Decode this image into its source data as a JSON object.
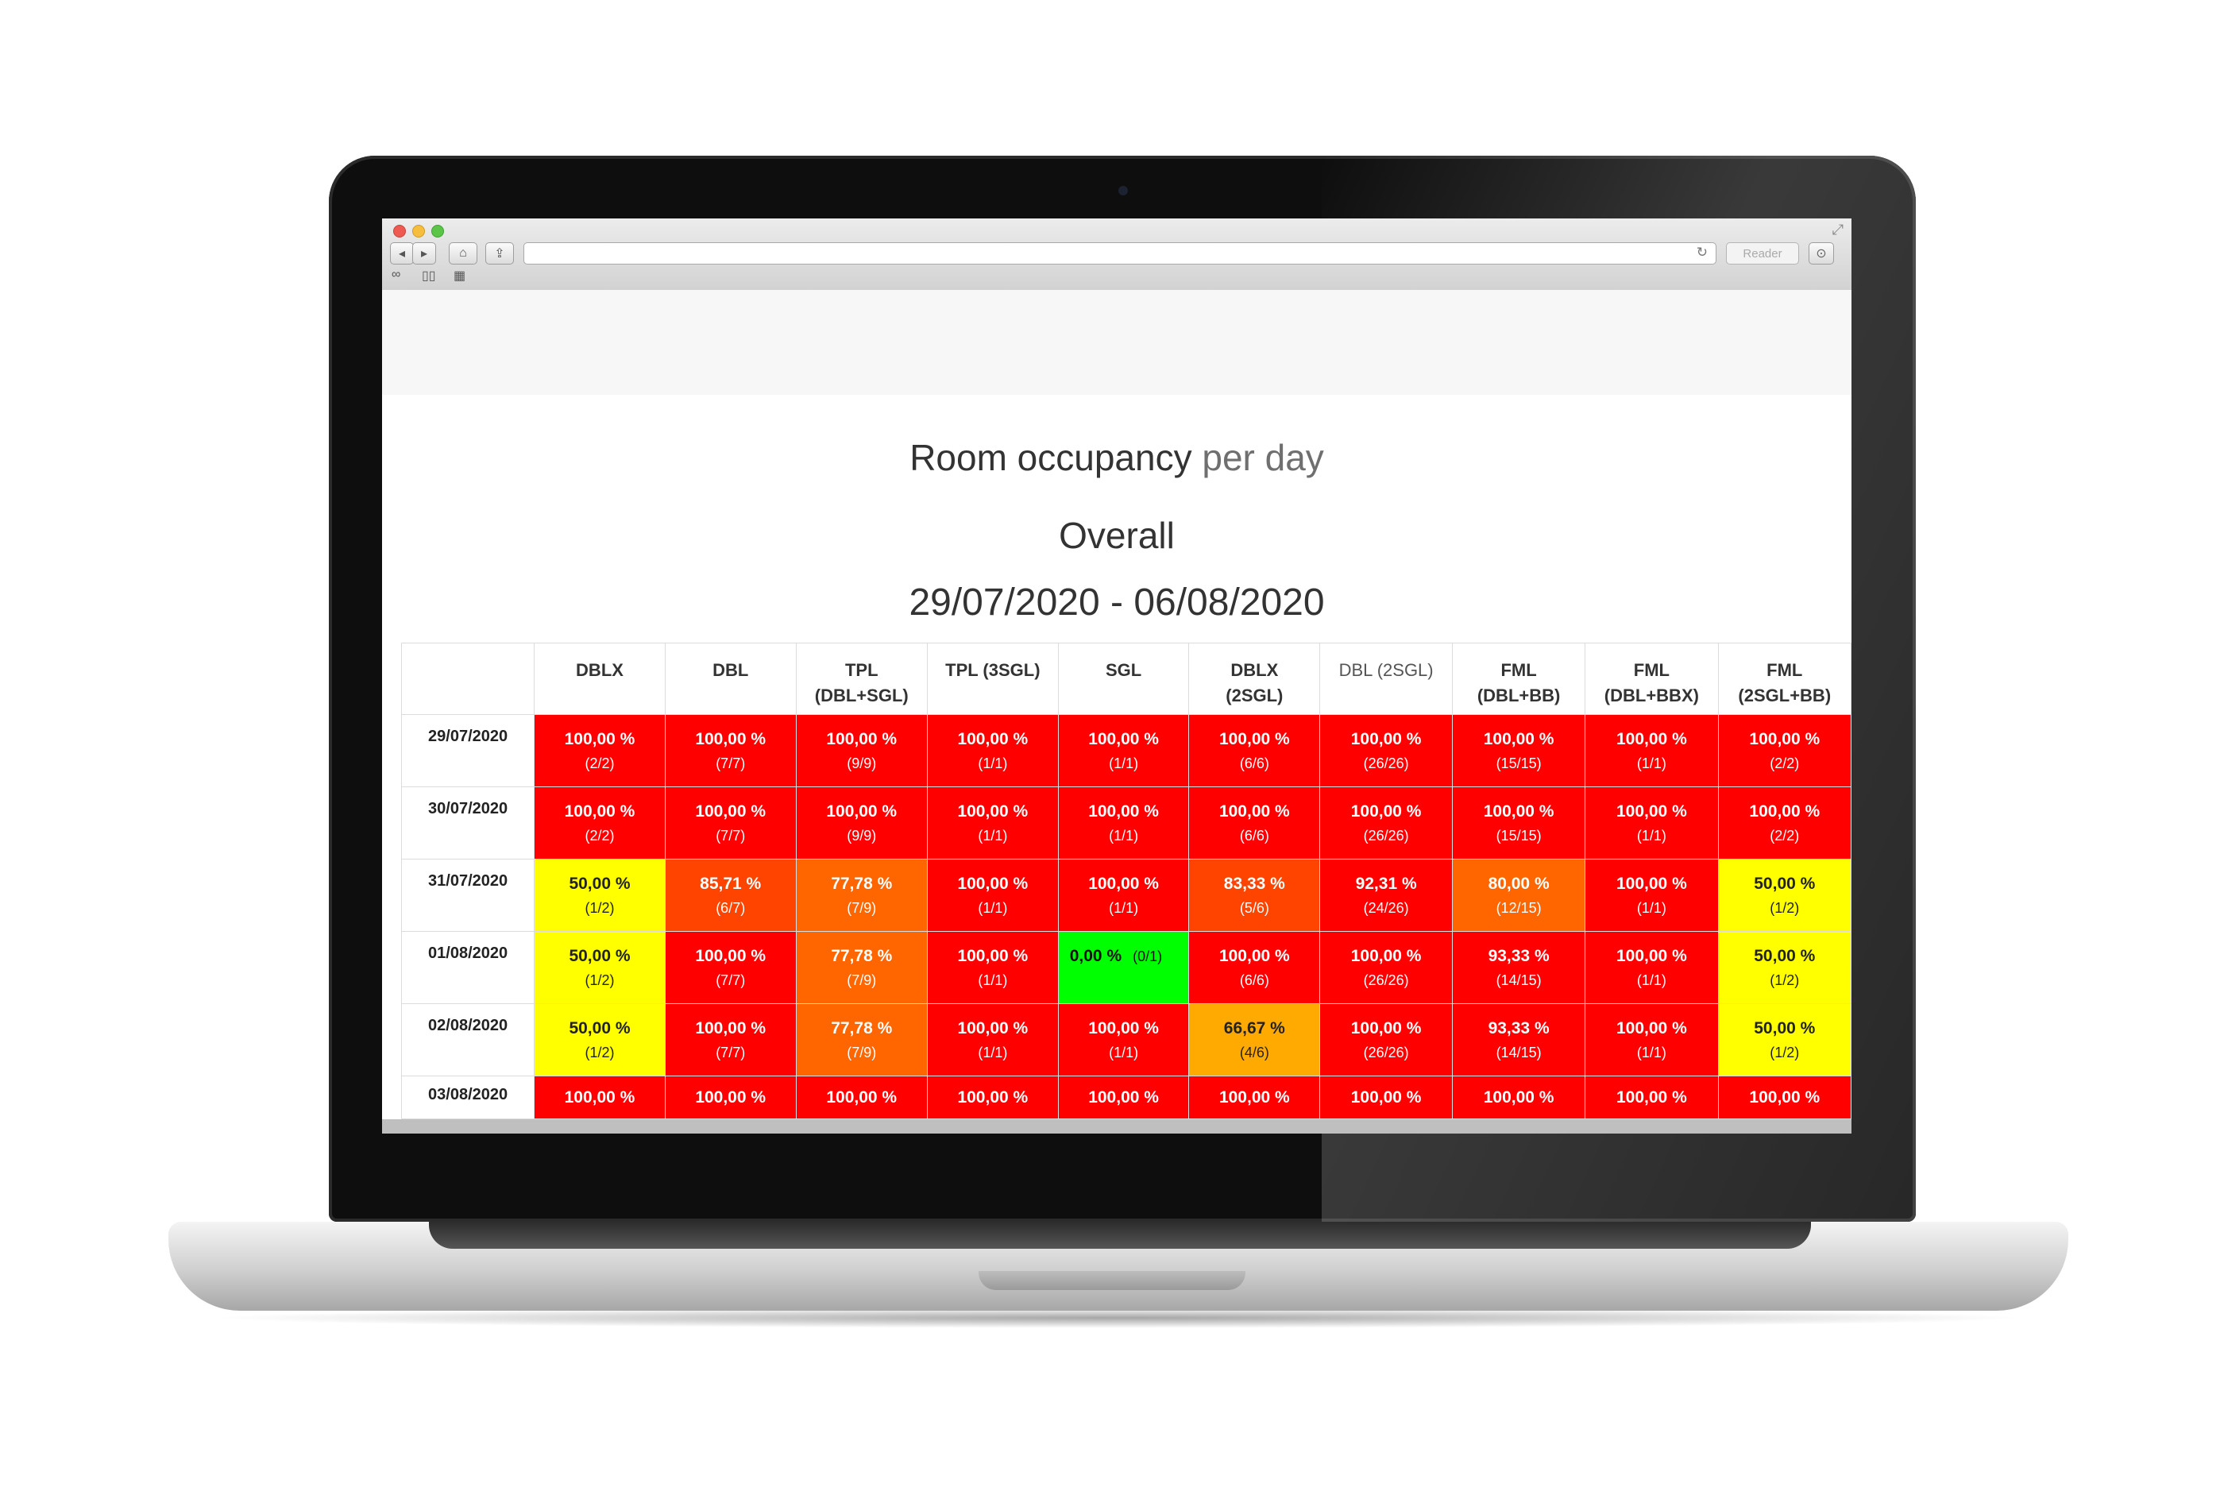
{
  "browser": {
    "reader_label": "Reader",
    "reload_glyph": "↻",
    "expand_glyph": "⤢",
    "icons": [
      "back-icon",
      "forward-icon",
      "home-icon",
      "share-icon",
      "reload-icon",
      "download-icon",
      "reading-list-icon",
      "bookmarks-icon",
      "top-sites-icon"
    ]
  },
  "page": {
    "title_main": "Room occupancy",
    "title_sub": "per day",
    "subtitle": "Overall",
    "date_range": "29/07/2020 - 06/08/2020"
  },
  "colors": {
    "red": "#ff0000",
    "yellow": "#ffff00",
    "orange": "#ff6600",
    "dark_orange": "#ff4400",
    "amber": "#ffaa00",
    "green": "#00ff00"
  },
  "table": {
    "columns": [
      {
        "l1": "DBLX",
        "l2": ""
      },
      {
        "l1": "DBL",
        "l2": ""
      },
      {
        "l1": "TPL",
        "l2": "(DBL+SGL)"
      },
      {
        "l1": "TPL (3SGL)",
        "l2": ""
      },
      {
        "l1": "SGL",
        "l2": ""
      },
      {
        "l1": "DBLX",
        "l2": "(2SGL)"
      },
      {
        "l1": "DBL (2SGL)",
        "l2": ""
      },
      {
        "l1": "FML",
        "l2": "(DBL+BB)"
      },
      {
        "l1": "FML",
        "l2": "(DBL+BBX)"
      },
      {
        "l1": "FML",
        "l2": "(2SGL+BB)"
      }
    ],
    "rows": [
      {
        "date": "29/07/2020",
        "cells": [
          {
            "pct": "100,00 %",
            "cnt": "(2/2)",
            "c": "red"
          },
          {
            "pct": "100,00 %",
            "cnt": "(7/7)",
            "c": "red"
          },
          {
            "pct": "100,00 %",
            "cnt": "(9/9)",
            "c": "red"
          },
          {
            "pct": "100,00 %",
            "cnt": "(1/1)",
            "c": "red"
          },
          {
            "pct": "100,00 %",
            "cnt": "(1/1)",
            "c": "red"
          },
          {
            "pct": "100,00 %",
            "cnt": "(6/6)",
            "c": "red"
          },
          {
            "pct": "100,00 %",
            "cnt": "(26/26)",
            "c": "red"
          },
          {
            "pct": "100,00 %",
            "cnt": "(15/15)",
            "c": "red"
          },
          {
            "pct": "100,00 %",
            "cnt": "(1/1)",
            "c": "red"
          },
          {
            "pct": "100,00 %",
            "cnt": "(2/2)",
            "c": "red"
          }
        ]
      },
      {
        "date": "30/07/2020",
        "cells": [
          {
            "pct": "100,00 %",
            "cnt": "(2/2)",
            "c": "red"
          },
          {
            "pct": "100,00 %",
            "cnt": "(7/7)",
            "c": "red"
          },
          {
            "pct": "100,00 %",
            "cnt": "(9/9)",
            "c": "red"
          },
          {
            "pct": "100,00 %",
            "cnt": "(1/1)",
            "c": "red"
          },
          {
            "pct": "100,00 %",
            "cnt": "(1/1)",
            "c": "red"
          },
          {
            "pct": "100,00 %",
            "cnt": "(6/6)",
            "c": "red"
          },
          {
            "pct": "100,00 %",
            "cnt": "(26/26)",
            "c": "red"
          },
          {
            "pct": "100,00 %",
            "cnt": "(15/15)",
            "c": "red"
          },
          {
            "pct": "100,00 %",
            "cnt": "(1/1)",
            "c": "red"
          },
          {
            "pct": "100,00 %",
            "cnt": "(2/2)",
            "c": "red"
          }
        ]
      },
      {
        "date": "31/07/2020",
        "cells": [
          {
            "pct": "50,00 %",
            "cnt": "(1/2)",
            "c": "yellow"
          },
          {
            "pct": "85,71 %",
            "cnt": "(6/7)",
            "c": "dark_orange"
          },
          {
            "pct": "77,78 %",
            "cnt": "(7/9)",
            "c": "orange"
          },
          {
            "pct": "100,00 %",
            "cnt": "(1/1)",
            "c": "red"
          },
          {
            "pct": "100,00 %",
            "cnt": "(1/1)",
            "c": "red"
          },
          {
            "pct": "83,33 %",
            "cnt": "(5/6)",
            "c": "dark_orange"
          },
          {
            "pct": "92,31 %",
            "cnt": "(24/26)",
            "c": "red"
          },
          {
            "pct": "80,00 %",
            "cnt": "(12/15)",
            "c": "orange"
          },
          {
            "pct": "100,00 %",
            "cnt": "(1/1)",
            "c": "red"
          },
          {
            "pct": "50,00 %",
            "cnt": "(1/2)",
            "c": "yellow"
          }
        ]
      },
      {
        "date": "01/08/2020",
        "cells": [
          {
            "pct": "50,00 %",
            "cnt": "(1/2)",
            "c": "yellow"
          },
          {
            "pct": "100,00 %",
            "cnt": "(7/7)",
            "c": "red"
          },
          {
            "pct": "77,78 %",
            "cnt": "(7/9)",
            "c": "orange"
          },
          {
            "pct": "100,00 %",
            "cnt": "(1/1)",
            "c": "red"
          },
          {
            "pct": "0,00 %",
            "cnt": "(0/1)",
            "c": "green"
          },
          {
            "pct": "100,00 %",
            "cnt": "(6/6)",
            "c": "red"
          },
          {
            "pct": "100,00 %",
            "cnt": "(26/26)",
            "c": "red"
          },
          {
            "pct": "93,33 %",
            "cnt": "(14/15)",
            "c": "red"
          },
          {
            "pct": "100,00 %",
            "cnt": "(1/1)",
            "c": "red"
          },
          {
            "pct": "50,00 %",
            "cnt": "(1/2)",
            "c": "yellow"
          }
        ]
      },
      {
        "date": "02/08/2020",
        "cells": [
          {
            "pct": "50,00 %",
            "cnt": "(1/2)",
            "c": "yellow"
          },
          {
            "pct": "100,00 %",
            "cnt": "(7/7)",
            "c": "red"
          },
          {
            "pct": "77,78 %",
            "cnt": "(7/9)",
            "c": "orange"
          },
          {
            "pct": "100,00 %",
            "cnt": "(1/1)",
            "c": "red"
          },
          {
            "pct": "100,00 %",
            "cnt": "(1/1)",
            "c": "red"
          },
          {
            "pct": "66,67 %",
            "cnt": "(4/6)",
            "c": "amber"
          },
          {
            "pct": "100,00 %",
            "cnt": "(26/26)",
            "c": "red"
          },
          {
            "pct": "93,33 %",
            "cnt": "(14/15)",
            "c": "red"
          },
          {
            "pct": "100,00 %",
            "cnt": "(1/1)",
            "c": "red"
          },
          {
            "pct": "50,00 %",
            "cnt": "(1/2)",
            "c": "yellow"
          }
        ]
      },
      {
        "date": "03/08/2020",
        "cells": [
          {
            "pct": "100,00 %",
            "cnt": "",
            "c": "red"
          },
          {
            "pct": "100,00 %",
            "cnt": "",
            "c": "red"
          },
          {
            "pct": "100,00 %",
            "cnt": "",
            "c": "red"
          },
          {
            "pct": "100,00 %",
            "cnt": "",
            "c": "red"
          },
          {
            "pct": "100,00 %",
            "cnt": "",
            "c": "red"
          },
          {
            "pct": "100,00 %",
            "cnt": "",
            "c": "red"
          },
          {
            "pct": "100,00 %",
            "cnt": "",
            "c": "red"
          },
          {
            "pct": "100,00 %",
            "cnt": "",
            "c": "red"
          },
          {
            "pct": "100,00 %",
            "cnt": "",
            "c": "red"
          },
          {
            "pct": "100,00 %",
            "cnt": "",
            "c": "red"
          }
        ]
      }
    ]
  }
}
